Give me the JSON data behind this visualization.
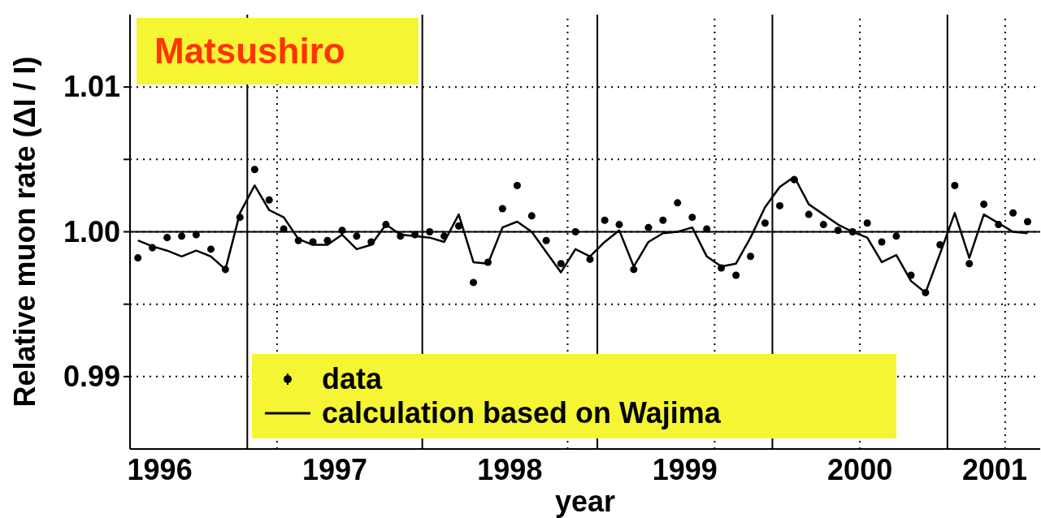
{
  "chart_data": {
    "type": "scatter",
    "xlabel": "year",
    "ylabel": "Relative muon rate (ΔI / I)",
    "annotations": [
      "Matsushiro"
    ],
    "x": [
      1996.375,
      1996.458,
      1996.542,
      1996.625,
      1996.708,
      1996.792,
      1996.875,
      1996.958,
      1997.042,
      1997.125,
      1997.208,
      1997.292,
      1997.375,
      1997.458,
      1997.542,
      1997.625,
      1997.708,
      1997.792,
      1997.875,
      1997.958,
      1998.042,
      1998.125,
      1998.208,
      1998.292,
      1998.375,
      1998.458,
      1998.542,
      1998.625,
      1998.708,
      1998.792,
      1998.875,
      1998.958,
      1999.042,
      1999.125,
      1999.208,
      1999.292,
      1999.375,
      1999.458,
      1999.542,
      1999.625,
      1999.708,
      1999.792,
      1999.875,
      1999.958,
      2000.042,
      2000.125,
      2000.208,
      2000.292,
      2000.375,
      2000.458,
      2000.542,
      2000.625,
      2000.708,
      2000.792,
      2000.875,
      2000.958,
      2001.042,
      2001.125,
      2001.208,
      2001.292,
      2001.375,
      2001.458
    ],
    "series": [
      {
        "name": "data",
        "type": "scatter",
        "marker": "circle",
        "color": "#000000",
        "values": [
          0.9982,
          0.9989,
          0.9996,
          0.9997,
          0.9998,
          0.9988,
          0.9974,
          1.001,
          1.0043,
          1.0022,
          1.0002,
          0.9994,
          0.9993,
          0.9994,
          1.0001,
          0.9997,
          0.9993,
          1.0005,
          0.9997,
          0.9998,
          1.0,
          0.9997,
          1.0004,
          0.9965,
          0.9979,
          1.0016,
          1.0032,
          1.0011,
          0.9994,
          0.9978,
          1.0,
          0.9981,
          1.0008,
          1.0005,
          0.9974,
          1.0003,
          1.0008,
          1.002,
          1.001,
          1.0002,
          0.9975,
          0.997,
          0.9983,
          1.0006,
          1.0018,
          1.0036,
          1.0012,
          1.0005,
          1.0001,
          1.0,
          1.0006,
          0.9993,
          0.9997,
          0.997,
          0.9958,
          0.9991,
          1.0032,
          0.9978,
          1.0019,
          1.0005,
          1.0013,
          1.0007
        ]
      },
      {
        "name": "calculation based on Wajima",
        "type": "line",
        "marker": "none",
        "line_style": "solid",
        "color": "#000000",
        "values": [
          0.9994,
          0.999,
          0.9987,
          0.9983,
          0.9987,
          0.9983,
          0.9974,
          1.0013,
          1.0032,
          1.0015,
          1.001,
          0.9995,
          0.9991,
          0.9991,
          0.9998,
          0.9988,
          0.9991,
          1.0005,
          0.9998,
          0.9997,
          0.9996,
          0.9993,
          1.0012,
          0.9979,
          0.9978,
          1.0003,
          1.0007,
          1.0,
          0.9986,
          0.9972,
          0.9988,
          0.9983,
          0.9993,
          1.0001,
          0.9976,
          0.9993,
          0.9999,
          1.0,
          1.0003,
          0.9983,
          0.9976,
          0.9978,
          0.9996,
          1.0017,
          1.0031,
          1.0038,
          1.0019,
          1.0012,
          1.0005,
          1.0,
          0.9996,
          0.9979,
          0.9984,
          0.9966,
          0.9958,
          0.9985,
          1.0013,
          0.9982,
          1.0012,
          1.0006,
          1.0,
          0.9999
        ]
      }
    ],
    "xlim": [
      1996.33,
      2001.53
    ],
    "xticks": [
      {
        "value": 1996.5,
        "label": "1996"
      },
      {
        "value": 1997.5,
        "label": "1997"
      },
      {
        "value": 1998.5,
        "label": "1998"
      },
      {
        "value": 1999.5,
        "label": "1999"
      },
      {
        "value": 2000.5,
        "label": "2000"
      },
      {
        "value": 2001.27,
        "label": "2001"
      }
    ],
    "ylim": [
      0.985,
      1.015
    ],
    "yticks": [
      0.99,
      {
        "value": 0.995,
        "label": null
      },
      {
        "value": 1,
        "label": "1.00"
      },
      {
        "value": 1.005,
        "label": null
      },
      1.01
    ],
    "grid": "y",
    "ref_lines": [
      {
        "axis": "y",
        "value": 1,
        "line_style": "solid"
      },
      {
        "axis": "x",
        "value": 1997,
        "line_style": "solid"
      },
      {
        "axis": "x",
        "value": 1998,
        "line_style": "solid"
      },
      {
        "axis": "x",
        "value": 1999,
        "line_style": "solid"
      },
      {
        "axis": "x",
        "value": 2000,
        "line_style": "solid"
      },
      {
        "axis": "x",
        "value": 2001,
        "line_style": "solid"
      },
      {
        "axis": "x",
        "value": 1997.17,
        "line_style": "dotted"
      },
      {
        "axis": "x",
        "value": 1998.83,
        "line_style": "dotted"
      },
      {
        "axis": "x",
        "value": 1999.67,
        "line_style": "dotted"
      },
      {
        "axis": "x",
        "value": 2000.5,
        "line_style": "dotted"
      },
      {
        "axis": "x",
        "value": 2001.33,
        "line_style": "dotted"
      }
    ],
    "legend": "bottom"
  }
}
